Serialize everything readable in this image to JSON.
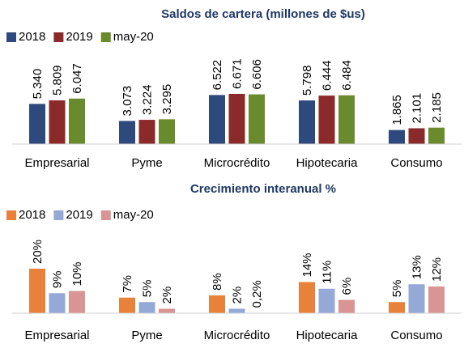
{
  "chart_data": [
    {
      "type": "bar",
      "title": "Saldos de cartera (millones de $us)",
      "categories": [
        "Empresarial",
        "Pyme",
        "Microcrédito",
        "Hipotecaria",
        "Consumo"
      ],
      "series": [
        {
          "name": "2018",
          "color": "#2e4a7d",
          "values": [
            5340,
            3073,
            6522,
            5798,
            1865
          ],
          "value_labels": [
            "5.340",
            "3.073",
            "6.522",
            "5.798",
            "1.865"
          ]
        },
        {
          "name": "2019",
          "color": "#8b2a2a",
          "values": [
            5809,
            3224,
            6671,
            6444,
            2101
          ],
          "value_labels": [
            "5.809",
            "3.224",
            "6.671",
            "6.444",
            "2.101"
          ]
        },
        {
          "name": "may-20",
          "color": "#6a8a2e",
          "values": [
            6047,
            3295,
            6606,
            6484,
            2185
          ],
          "value_labels": [
            "6.047",
            "3.295",
            "6.606",
            "6.484",
            "2.185"
          ]
        }
      ]
    },
    {
      "type": "bar",
      "title": "Crecimiento interanual %",
      "categories": [
        "Empresarial",
        "Pyme",
        "Microcrédito",
        "Hipotecaria",
        "Consumo"
      ],
      "series": [
        {
          "name": "2018",
          "color": "#e8823a",
          "values": [
            20,
            7,
            8,
            14,
            5
          ],
          "value_labels": [
            "20%",
            "7%",
            "8%",
            "14%",
            "5%"
          ]
        },
        {
          "name": "2019",
          "color": "#94a9d6",
          "values": [
            9,
            5,
            2,
            11,
            13
          ],
          "value_labels": [
            "9%",
            "5%",
            "2%",
            "11%",
            "13%"
          ]
        },
        {
          "name": "may-20",
          "color": "#d99594",
          "values": [
            10,
            2,
            0.2,
            6,
            12
          ],
          "value_labels": [
            "10%",
            "2%",
            "0,2%",
            "6%",
            "12%"
          ]
        }
      ]
    }
  ]
}
